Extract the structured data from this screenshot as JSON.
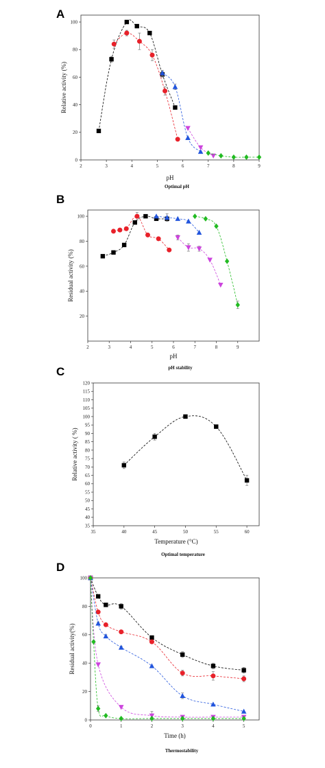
{
  "chart_data": [
    {
      "panel": "A",
      "type": "line",
      "caption": "Optimal pH",
      "xlabel": "pH",
      "ylabel": "Relative activity (%)",
      "xlim": [
        2,
        9
      ],
      "ylim": [
        0,
        105
      ],
      "xticks": [
        "2",
        "3",
        "4",
        "5",
        "6",
        "7",
        "8",
        "9"
      ],
      "yticks": [
        "0",
        "20",
        "40",
        "60",
        "80",
        "100"
      ],
      "grid": false,
      "series": [
        {
          "color": "#000000",
          "marker": "square",
          "x": [
            2.7,
            3.2,
            3.8,
            4.2,
            4.7,
            5.2,
            5.7
          ],
          "y": [
            21,
            73,
            100,
            97,
            92,
            62,
            38
          ],
          "err": [
            0,
            2,
            0,
            1,
            1,
            2,
            0
          ]
        },
        {
          "color": "#e8212a",
          "marker": "circle",
          "x": [
            3.3,
            3.8,
            4.3,
            4.8,
            5.3,
            5.8
          ],
          "y": [
            84,
            92,
            86,
            76,
            50,
            15
          ],
          "err": [
            3,
            2,
            6,
            4,
            3,
            0
          ]
        },
        {
          "color": "#2255dd",
          "marker": "triangle-up",
          "x": [
            5.2,
            5.7,
            6.2,
            6.7
          ],
          "y": [
            63,
            53,
            16,
            6
          ],
          "err": [
            2,
            2,
            0,
            0
          ]
        },
        {
          "color": "#cc44dd",
          "marker": "triangle-down",
          "x": [
            6.2,
            6.7,
            7.2
          ],
          "y": [
            23,
            9,
            3
          ],
          "err": [
            0,
            0,
            0
          ]
        },
        {
          "color": "#22bb22",
          "marker": "diamond",
          "x": [
            7.0,
            7.5,
            8.0,
            8.5,
            9.0
          ],
          "y": [
            5,
            3,
            2,
            2,
            2
          ],
          "err": [
            0,
            0,
            0,
            0,
            0
          ]
        }
      ]
    },
    {
      "panel": "B",
      "type": "line",
      "caption": "pH stability",
      "xlabel": "pH",
      "ylabel": "Residual activity (%)",
      "xlim": [
        2,
        10
      ],
      "ylim": [
        0,
        105
      ],
      "xticks": [
        "2",
        "3",
        "4",
        "5",
        "6",
        "7",
        "8",
        "9"
      ],
      "yticks": [
        "20",
        "40",
        "60",
        "80",
        "100"
      ],
      "grid": false,
      "series": [
        {
          "color": "#000000",
          "marker": "square",
          "x": [
            2.7,
            3.2,
            3.7,
            4.2,
            4.7,
            5.2,
            5.7
          ],
          "y": [
            68,
            71,
            77,
            95,
            100,
            98,
            98
          ],
          "err": [
            0,
            0,
            0,
            0,
            0,
            0,
            0
          ]
        },
        {
          "color": "#e8212a",
          "marker": "circle",
          "x": [
            3.2,
            3.5,
            3.8,
            4.3,
            4.8,
            5.3,
            5.8
          ],
          "y": [
            88,
            89,
            90,
            100,
            85,
            82,
            73
          ],
          "err": [
            0,
            0,
            0,
            3,
            0,
            0,
            0
          ]
        },
        {
          "color": "#2255dd",
          "marker": "triangle-up",
          "x": [
            5.2,
            5.7,
            6.2,
            6.7,
            7.2
          ],
          "y": [
            100,
            99,
            98,
            96,
            87
          ],
          "err": [
            0,
            3,
            0,
            0,
            0
          ]
        },
        {
          "color": "#cc44dd",
          "marker": "triangle-down",
          "x": [
            6.2,
            6.7,
            7.2,
            7.7,
            8.2
          ],
          "y": [
            83,
            75,
            74,
            65,
            45
          ],
          "err": [
            2,
            3,
            2,
            0,
            0
          ]
        },
        {
          "color": "#22bb22",
          "marker": "diamond",
          "x": [
            7.0,
            7.5,
            8.0,
            8.5,
            9.0
          ],
          "y": [
            100,
            98,
            92,
            64,
            29
          ],
          "err": [
            0,
            0,
            0,
            0,
            3
          ]
        }
      ]
    },
    {
      "panel": "C",
      "type": "line",
      "caption": "Optimal temperature",
      "xlabel": "Temperature (°C)",
      "ylabel": "Relative activity ( %)",
      "xlim": [
        35,
        62
      ],
      "ylim": [
        35,
        120
      ],
      "xticks": [
        "35",
        "40",
        "45",
        "50",
        "55",
        "60"
      ],
      "yticks": [
        "35",
        "40",
        "45",
        "50",
        "55",
        "60",
        "65",
        "70",
        "75",
        "80",
        "85",
        "90",
        "95",
        "100",
        "105",
        "110",
        "115",
        "120"
      ],
      "grid": false,
      "series": [
        {
          "color": "#000000",
          "marker": "square",
          "x": [
            40,
            45,
            50,
            55,
            60
          ],
          "y": [
            71,
            88,
            100,
            94,
            62
          ],
          "err": [
            2,
            2,
            1,
            1,
            3
          ]
        }
      ]
    },
    {
      "panel": "D",
      "type": "line",
      "caption": "Thermostability",
      "xlabel": "Time (h)",
      "ylabel": "Residual activity(%)",
      "xlim": [
        0,
        5.5
      ],
      "ylim": [
        0,
        100
      ],
      "xticks": [
        "0",
        "1",
        "2",
        "3",
        "4",
        "5"
      ],
      "yticks": [
        "0",
        "20",
        "40",
        "60",
        "80",
        "100"
      ],
      "grid": false,
      "series": [
        {
          "color": "#000000",
          "marker": "square",
          "x": [
            0,
            0.25,
            0.5,
            1,
            2,
            3,
            4,
            5
          ],
          "y": [
            100,
            87,
            81,
            80,
            58,
            46,
            38,
            35
          ],
          "err": [
            0,
            1,
            1,
            2,
            1,
            2,
            2,
            2
          ]
        },
        {
          "color": "#e8212a",
          "marker": "circle",
          "x": [
            0,
            0.25,
            0.5,
            1,
            2,
            3,
            4,
            5
          ],
          "y": [
            100,
            76,
            67,
            62,
            55,
            33,
            31,
            29
          ],
          "err": [
            0,
            1,
            1,
            1,
            1,
            2,
            3,
            2
          ]
        },
        {
          "color": "#2255dd",
          "marker": "triangle-up",
          "x": [
            0,
            0.25,
            0.5,
            1,
            2,
            3,
            4,
            5
          ],
          "y": [
            100,
            68,
            59,
            51,
            38,
            17,
            11,
            6
          ],
          "err": [
            0,
            1,
            1,
            1,
            0,
            2,
            0,
            0
          ]
        },
        {
          "color": "#cc44dd",
          "marker": "triangle-down",
          "x": [
            0,
            0.25,
            1,
            2,
            3,
            4,
            5
          ],
          "y": [
            100,
            39,
            9,
            3,
            2,
            2,
            2
          ],
          "err": [
            0,
            0,
            0,
            3,
            0,
            0,
            0
          ]
        },
        {
          "color": "#22bb22",
          "marker": "diamond",
          "x": [
            0,
            0.1,
            0.25,
            0.5,
            1,
            2,
            3,
            4,
            5
          ],
          "y": [
            100,
            55,
            8,
            3,
            1,
            1,
            1,
            1,
            1
          ],
          "err": [
            0,
            0,
            2,
            0,
            0,
            0,
            0,
            0,
            0
          ]
        }
      ]
    }
  ]
}
